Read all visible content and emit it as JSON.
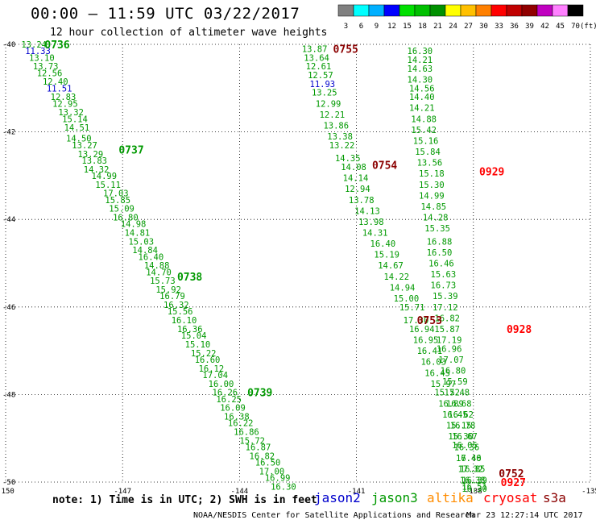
{
  "header": {
    "title": "00:00 – 11:59 UTC 03/22/2017",
    "subtitle": "12 hour collection of altimeter wave heights"
  },
  "footer": {
    "note": "note: 1) Time is in UTC; 2) SWH is in feet",
    "credit": "NOAA/NESDIS Center for Satellite Applications and Research",
    "timestamp": "Mar 23 12:27:14 UTC 2017"
  },
  "colorbar": {
    "unit": "(ft)",
    "ticks": [
      "3",
      "6",
      "9",
      "12",
      "15",
      "18",
      "21",
      "24",
      "27",
      "30",
      "33",
      "36",
      "39",
      "42",
      "45",
      "70"
    ],
    "colors": [
      "#808080",
      "#00ffff",
      "#00b0ff",
      "#0000ff",
      "#00e000",
      "#00c000",
      "#009000",
      "#ffff00",
      "#ffc000",
      "#ff8000",
      "#ff0000",
      "#c00000",
      "#900000",
      "#c000c0",
      "#ff80ff",
      "#000000"
    ]
  },
  "legend": [
    {
      "name": "jason2",
      "color": "#0000cc"
    },
    {
      "name": "jason3",
      "color": "#009900"
    },
    {
      "name": "altika",
      "color": "#ff8c00"
    },
    {
      "name": "cryosat",
      "color": "#ff0000"
    },
    {
      "name": "s3a",
      "color": "#8b0000"
    }
  ],
  "chart_data": {
    "type": "scatter",
    "xlim": [
      -150,
      -135
    ],
    "ylim": [
      -50,
      -40
    ],
    "xticks": [
      "-150",
      "-147",
      "-144",
      "-141",
      "-138",
      "-135"
    ],
    "yticks": [
      "-40",
      "-42",
      "-44",
      "-46",
      "-48",
      "-50"
    ],
    "grid": true,
    "series": [
      {
        "name": "jason3",
        "color": "#009900",
        "points": [
          [
            -149.6,
            -40,
            "13.24"
          ],
          [
            -149.5,
            -40.15,
            "11.33"
          ],
          [
            -149.4,
            -40.3,
            "13.10"
          ],
          [
            -149.3,
            -40.5,
            "13.73"
          ],
          [
            -149.2,
            -40.65,
            "12.56"
          ],
          [
            -149.05,
            -40.85,
            "12.40"
          ],
          [
            -148.95,
            -41,
            "11.51"
          ],
          [
            -148.85,
            -41.2,
            "12.83"
          ],
          [
            -148.8,
            -41.35,
            "12.95"
          ],
          [
            -148.65,
            -41.55,
            "13.32"
          ],
          [
            -148.55,
            -41.7,
            "15.14"
          ],
          [
            -148.5,
            -41.9,
            "14.51"
          ],
          [
            -148.45,
            -42.15,
            "14.50"
          ],
          [
            -148.3,
            -42.3,
            "13.27"
          ],
          [
            -148.15,
            -42.5,
            "13.29"
          ],
          [
            -148.05,
            -42.65,
            "13.83"
          ],
          [
            -148.0,
            -42.85,
            "14.32"
          ],
          [
            -147.8,
            -43.0,
            "14.99"
          ],
          [
            -147.7,
            -43.2,
            "15.11"
          ],
          [
            -147.5,
            -43.4,
            "17.03"
          ],
          [
            -147.45,
            -43.55,
            "15.85"
          ],
          [
            -147.35,
            -43.75,
            "15.09"
          ],
          [
            -147.25,
            -43.95,
            "16.80"
          ],
          [
            -147.05,
            -44.1,
            "14.98"
          ],
          [
            -146.95,
            -44.3,
            "14.81"
          ],
          [
            -146.85,
            -44.5,
            "15.03"
          ],
          [
            -146.75,
            -44.7,
            "14.84"
          ],
          [
            -146.6,
            -44.85,
            "16.40"
          ],
          [
            -146.45,
            -45.05,
            "14.88"
          ],
          [
            -146.4,
            -45.2,
            "14.70"
          ],
          [
            -146.3,
            -45.4,
            "15.73"
          ],
          [
            -146.15,
            -45.6,
            "15.92"
          ],
          [
            -146.05,
            -45.75,
            "16.79"
          ],
          [
            -145.95,
            -45.95,
            "16.32"
          ],
          [
            -145.85,
            -46.1,
            "15.56"
          ],
          [
            -145.75,
            -46.3,
            "16.10"
          ],
          [
            -145.6,
            -46.5,
            "16.36"
          ],
          [
            -145.5,
            -46.65,
            "15.04"
          ],
          [
            -145.4,
            -46.85,
            "15.10"
          ],
          [
            -145.25,
            -47.05,
            "15.22"
          ],
          [
            -145.15,
            -47.2,
            "16.60"
          ],
          [
            -145.05,
            -47.4,
            "16.12"
          ],
          [
            -144.95,
            -47.55,
            "17.04"
          ],
          [
            -144.8,
            -47.75,
            "16.00"
          ],
          [
            -144.7,
            -47.95,
            "16.26"
          ],
          [
            -144.6,
            -48.1,
            "16.25"
          ],
          [
            -144.5,
            -48.3,
            "16.09"
          ],
          [
            -144.4,
            -48.5,
            "16.38"
          ],
          [
            -144.3,
            -48.65,
            "16.22"
          ],
          [
            -144.15,
            -48.85,
            "16.86"
          ],
          [
            -144.0,
            -49.05,
            "15.72"
          ],
          [
            -143.85,
            -49.2,
            "16.87"
          ],
          [
            -143.75,
            -49.4,
            "16.82"
          ],
          [
            -143.6,
            -49.55,
            "16.50"
          ],
          [
            -143.5,
            -49.75,
            "17.00"
          ],
          [
            -143.35,
            -49.9,
            "16.99"
          ],
          [
            -143.2,
            -50.1,
            "16.30"
          ]
        ]
      },
      {
        "name": "jason3",
        "color": "#009900",
        "points": [
          [
            -142.4,
            -40.1,
            "13.87"
          ],
          [
            -142.35,
            -40.3,
            "13.64"
          ],
          [
            -142.3,
            -40.5,
            "12.61"
          ],
          [
            -142.25,
            -40.7,
            "12.57"
          ],
          [
            -142.2,
            -40.9,
            "11.93"
          ],
          [
            -142.15,
            -41.1,
            "13.25"
          ],
          [
            -142.05,
            -41.35,
            "12.99"
          ],
          [
            -141.95,
            -41.6,
            "12.21"
          ],
          [
            -141.85,
            -41.85,
            "13.86"
          ],
          [
            -141.75,
            -42.1,
            "13.38"
          ],
          [
            -141.7,
            -42.3,
            "13.22"
          ],
          [
            -141.55,
            -42.6,
            "14.35"
          ],
          [
            -141.4,
            -42.8,
            "14.08"
          ],
          [
            -141.35,
            -43.05,
            "14.14"
          ],
          [
            -141.3,
            -43.3,
            "12.94"
          ],
          [
            -141.2,
            -43.55,
            "13.78"
          ],
          [
            -141.05,
            -43.8,
            "14.13"
          ],
          [
            -140.95,
            -44.05,
            "13.98"
          ],
          [
            -140.85,
            -44.3,
            "14.31"
          ],
          [
            -140.65,
            -44.55,
            "16.40"
          ],
          [
            -140.55,
            -44.8,
            "15.19"
          ],
          [
            -140.45,
            -45.05,
            "14.67"
          ],
          [
            -140.3,
            -45.3,
            "14.22"
          ],
          [
            -140.15,
            -45.55,
            "14.94"
          ],
          [
            -140.05,
            -45.8,
            "15.00"
          ],
          [
            -139.9,
            -46.0,
            "15.71"
          ],
          [
            -139.8,
            -46.3,
            "17.30"
          ],
          [
            -139.65,
            -46.5,
            "16.94"
          ],
          [
            -139.55,
            -46.75,
            "16.95"
          ],
          [
            -139.45,
            -47.0,
            "16.41"
          ],
          [
            -139.35,
            -47.25,
            "16.03"
          ],
          [
            -139.25,
            -47.5,
            "16.45"
          ],
          [
            -139.1,
            -47.75,
            "15.97"
          ],
          [
            -139.0,
            -47.95,
            "15.52"
          ],
          [
            -138.9,
            -48.2,
            "16.89"
          ],
          [
            -138.8,
            -48.45,
            "16.45"
          ],
          [
            -138.7,
            -48.7,
            "15.15"
          ],
          [
            -138.65,
            -48.95,
            "15.30"
          ],
          [
            -138.55,
            -49.15,
            "16.05"
          ],
          [
            -138.45,
            -49.45,
            "16.46"
          ],
          [
            -138.35,
            -49.7,
            "16.85"
          ],
          [
            -138.3,
            -49.95,
            "16.39"
          ],
          [
            -138.3,
            -50.1,
            "16.51"
          ]
        ]
      },
      {
        "name": "jason3",
        "color": "#009900",
        "points": [
          [
            -139.7,
            -40.15,
            "16.30"
          ],
          [
            -139.7,
            -40.35,
            "14.21"
          ],
          [
            -139.7,
            -40.55,
            "14.63"
          ],
          [
            -139.7,
            -40.8,
            "14.30"
          ],
          [
            -139.65,
            -41.0,
            "14.56"
          ],
          [
            -139.65,
            -41.2,
            "14.40"
          ],
          [
            -139.65,
            -41.45,
            "14.21"
          ],
          [
            -139.6,
            -41.7,
            "14.88"
          ],
          [
            -139.6,
            -41.95,
            "15.42"
          ],
          [
            -139.55,
            -42.2,
            "15.16"
          ],
          [
            -139.5,
            -42.45,
            "15.84"
          ],
          [
            -139.45,
            -42.7,
            "13.56"
          ],
          [
            -139.4,
            -42.95,
            "15.18"
          ],
          [
            -139.4,
            -43.2,
            "15.30"
          ],
          [
            -139.4,
            -43.45,
            "14.99"
          ],
          [
            -139.35,
            -43.7,
            "14.85"
          ],
          [
            -139.3,
            -43.95,
            "14.28"
          ],
          [
            -139.25,
            -44.2,
            "15.35"
          ],
          [
            -139.2,
            -44.5,
            "16.88"
          ],
          [
            -139.2,
            -44.75,
            "16.50"
          ],
          [
            -139.15,
            -45.0,
            "16.46"
          ],
          [
            -139.1,
            -45.25,
            "15.63"
          ],
          [
            -139.1,
            -45.5,
            "16.73"
          ],
          [
            -139.05,
            -45.75,
            "15.39"
          ],
          [
            -139.05,
            -46.0,
            "17.12"
          ],
          [
            -139.0,
            -46.25,
            "16.82"
          ],
          [
            -139.0,
            -46.5,
            "15.87"
          ],
          [
            -138.95,
            -46.75,
            "17.19"
          ],
          [
            -138.95,
            -46.95,
            "16.96"
          ],
          [
            -138.9,
            -47.2,
            "17.07"
          ],
          [
            -138.85,
            -47.45,
            "16.80"
          ],
          [
            -138.8,
            -47.7,
            "15.59"
          ],
          [
            -138.75,
            -47.95,
            "17.48"
          ],
          [
            -138.7,
            -48.2,
            "16.68"
          ],
          [
            -138.65,
            -48.45,
            "16.62"
          ],
          [
            -138.6,
            -48.7,
            "16.78"
          ],
          [
            -138.55,
            -48.95,
            "16.67"
          ],
          [
            -138.5,
            -49.2,
            "16.36"
          ],
          [
            -138.45,
            -49.45,
            "17.40"
          ],
          [
            -138.4,
            -49.7,
            "17.32"
          ],
          [
            -138.35,
            -49.95,
            "16.38"
          ],
          [
            -138.3,
            -50.15,
            "16.30"
          ]
        ]
      }
    ],
    "time_labels": [
      {
        "text": "0736",
        "x": -149.0,
        "y": -40.0,
        "color": "#009900"
      },
      {
        "text": "0737",
        "x": -147.1,
        "y": -42.4,
        "color": "#009900"
      },
      {
        "text": "0738",
        "x": -145.6,
        "y": -45.3,
        "color": "#009900"
      },
      {
        "text": "0739",
        "x": -143.8,
        "y": -47.95,
        "color": "#009900"
      },
      {
        "text": "0755",
        "x": -141.6,
        "y": -40.1,
        "color": "#8b0000"
      },
      {
        "text": "0754",
        "x": -140.6,
        "y": -42.75,
        "color": "#8b0000"
      },
      {
        "text": "0753",
        "x": -139.45,
        "y": -46.3,
        "color": "#8b0000"
      },
      {
        "text": "0752",
        "x": -137.35,
        "y": -49.8,
        "color": "#8b0000"
      },
      {
        "text": "0929",
        "x": -137.85,
        "y": -42.9,
        "color": "#ff0000"
      },
      {
        "text": "0928",
        "x": -137.15,
        "y": -46.5,
        "color": "#ff0000"
      },
      {
        "text": "0927",
        "x": -137.3,
        "y": -50.0,
        "color": "#ff0000"
      }
    ]
  }
}
